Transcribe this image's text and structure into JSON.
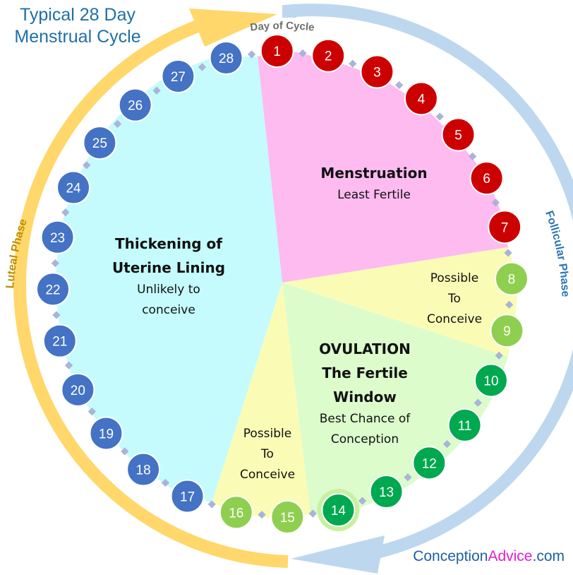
{
  "title_line1": "Typical 28 Day",
  "title_line2": "Menstrual Cycle",
  "day_of_cycle_label": "Day of Cycle",
  "follicular_label": "Follicular Phase",
  "luteal_label": "Luteal Phase",
  "brand": {
    "part1": "Conception",
    "part2": "Advice",
    "part3": ".com"
  },
  "colors": {
    "menstruation": "#cc0000",
    "possible_light": "#8fcf4f",
    "fertile": "#00a84f",
    "luteal": "#4472c4",
    "sector_menstruation": "#fdbbf0",
    "sector_possible": "#fafcb6",
    "sector_ovulation": "#dcfccc",
    "sector_luteal": "#c5fbfd",
    "follicular_arrow": "#bdd7ee",
    "luteal_arrow": "#ffd76b"
  },
  "segments": {
    "menstruation": {
      "heading": "Menstruation",
      "sub": "Least Fertile"
    },
    "possible_early": {
      "line1": "Possible",
      "line2": "To",
      "line3": "Conceive"
    },
    "ovulation": {
      "line1": "OVULATION",
      "line2": "The Fertile",
      "line3": "Window",
      "sub1": "Best Chance of",
      "sub2": "Conception"
    },
    "possible_late": {
      "line1": "Possible",
      "line2": "To",
      "line3": "Conceive"
    },
    "luteal": {
      "line1": "Thickening of",
      "line2": "Uterine Lining",
      "sub1": "Unlikely to",
      "sub2": "conceive"
    }
  },
  "days": [
    {
      "n": "1",
      "cat": "menstruation"
    },
    {
      "n": "2",
      "cat": "menstruation"
    },
    {
      "n": "3",
      "cat": "menstruation"
    },
    {
      "n": "4",
      "cat": "menstruation"
    },
    {
      "n": "5",
      "cat": "menstruation"
    },
    {
      "n": "6",
      "cat": "menstruation"
    },
    {
      "n": "7",
      "cat": "menstruation"
    },
    {
      "n": "8",
      "cat": "possible_light"
    },
    {
      "n": "9",
      "cat": "possible_light"
    },
    {
      "n": "10",
      "cat": "fertile"
    },
    {
      "n": "11",
      "cat": "fertile"
    },
    {
      "n": "12",
      "cat": "fertile"
    },
    {
      "n": "13",
      "cat": "fertile"
    },
    {
      "n": "14",
      "cat": "fertile",
      "highlight": true
    },
    {
      "n": "15",
      "cat": "possible_light"
    },
    {
      "n": "16",
      "cat": "possible_light"
    },
    {
      "n": "17",
      "cat": "luteal"
    },
    {
      "n": "18",
      "cat": "luteal"
    },
    {
      "n": "19",
      "cat": "luteal"
    },
    {
      "n": "20",
      "cat": "luteal"
    },
    {
      "n": "21",
      "cat": "luteal"
    },
    {
      "n": "22",
      "cat": "luteal"
    },
    {
      "n": "23",
      "cat": "luteal"
    },
    {
      "n": "24",
      "cat": "luteal"
    },
    {
      "n": "25",
      "cat": "luteal"
    },
    {
      "n": "26",
      "cat": "luteal"
    },
    {
      "n": "27",
      "cat": "luteal"
    },
    {
      "n": "28",
      "cat": "luteal"
    }
  ]
}
